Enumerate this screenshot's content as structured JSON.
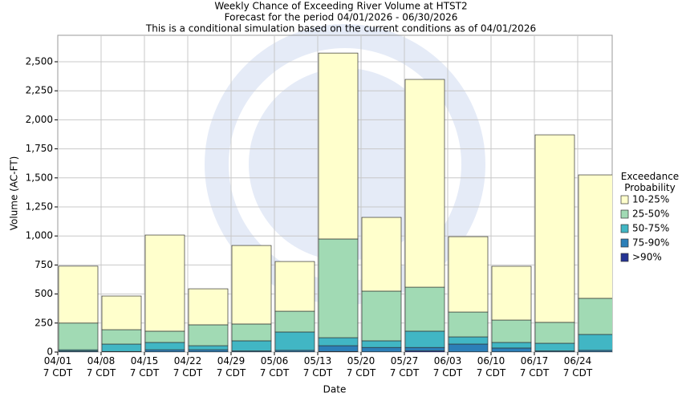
{
  "chart_data": {
    "type": "stacked_bar",
    "title": [
      "Weekly Chance of Exceeding River Volume at HTST2",
      "Forecast for the period 04/01/2026 - 06/30/2026",
      "This is a conditional simulation based on the current conditions as of 04/01/2026"
    ],
    "x_label": "Date",
    "y_label": "Volume (AC-FT)",
    "legend_title": "Exceedance Probability",
    "categories": [
      "04/01 7 CDT",
      "04/08 7 CDT",
      "04/15 7 CDT",
      "04/22 7 CDT",
      "04/29 7 CDT",
      "05/06 7 CDT",
      "05/13 7 CDT",
      "05/20 7 CDT",
      "05/27 7 CDT",
      "06/03 7 CDT",
      "06/10 7 CDT",
      "06/17 7 CDT",
      "06/24 7 CDT"
    ],
    "series": [
      {
        "name": ">90%",
        "color": "#253494",
        "values": [
          2,
          2,
          2,
          2,
          2,
          2,
          5,
          2,
          10,
          2,
          2,
          2,
          2
        ]
      },
      {
        "name": "75-90%",
        "color": "#2c7fb8",
        "values": [
          8,
          3,
          18,
          18,
          8,
          13,
          50,
          38,
          30,
          67,
          33,
          8,
          13
        ]
      },
      {
        "name": "50-75%",
        "color": "#41b6c4",
        "values": [
          10,
          64,
          63,
          35,
          87,
          158,
          69,
          57,
          140,
          62,
          48,
          66,
          137
        ]
      },
      {
        "name": "25-50%",
        "color": "#a1dab4",
        "values": [
          230,
          124,
          97,
          180,
          145,
          179,
          850,
          428,
          379,
          214,
          193,
          180,
          311
        ]
      },
      {
        "name": "10-25%",
        "color": "#ffffcc",
        "values": [
          490,
          290,
          828,
          310,
          676,
          428,
          1601,
          635,
          1789,
          649,
          463,
          1615,
          1063
        ]
      }
    ],
    "ylim": [
      0,
      2728
    ],
    "yticks": [
      0,
      250,
      500,
      750,
      {
        "value": 1000,
        "label": "1,000"
      },
      {
        "value": 1250,
        "label": "1,250"
      },
      {
        "value": 1500,
        "label": "1,500"
      },
      {
        "value": 1750,
        "label": "1,750"
      },
      {
        "value": 2000,
        "label": "2,000"
      },
      {
        "value": 2250,
        "label": "2,250"
      },
      {
        "value": 2500,
        "label": "2,500"
      }
    ],
    "grid": true,
    "legend": "right"
  }
}
